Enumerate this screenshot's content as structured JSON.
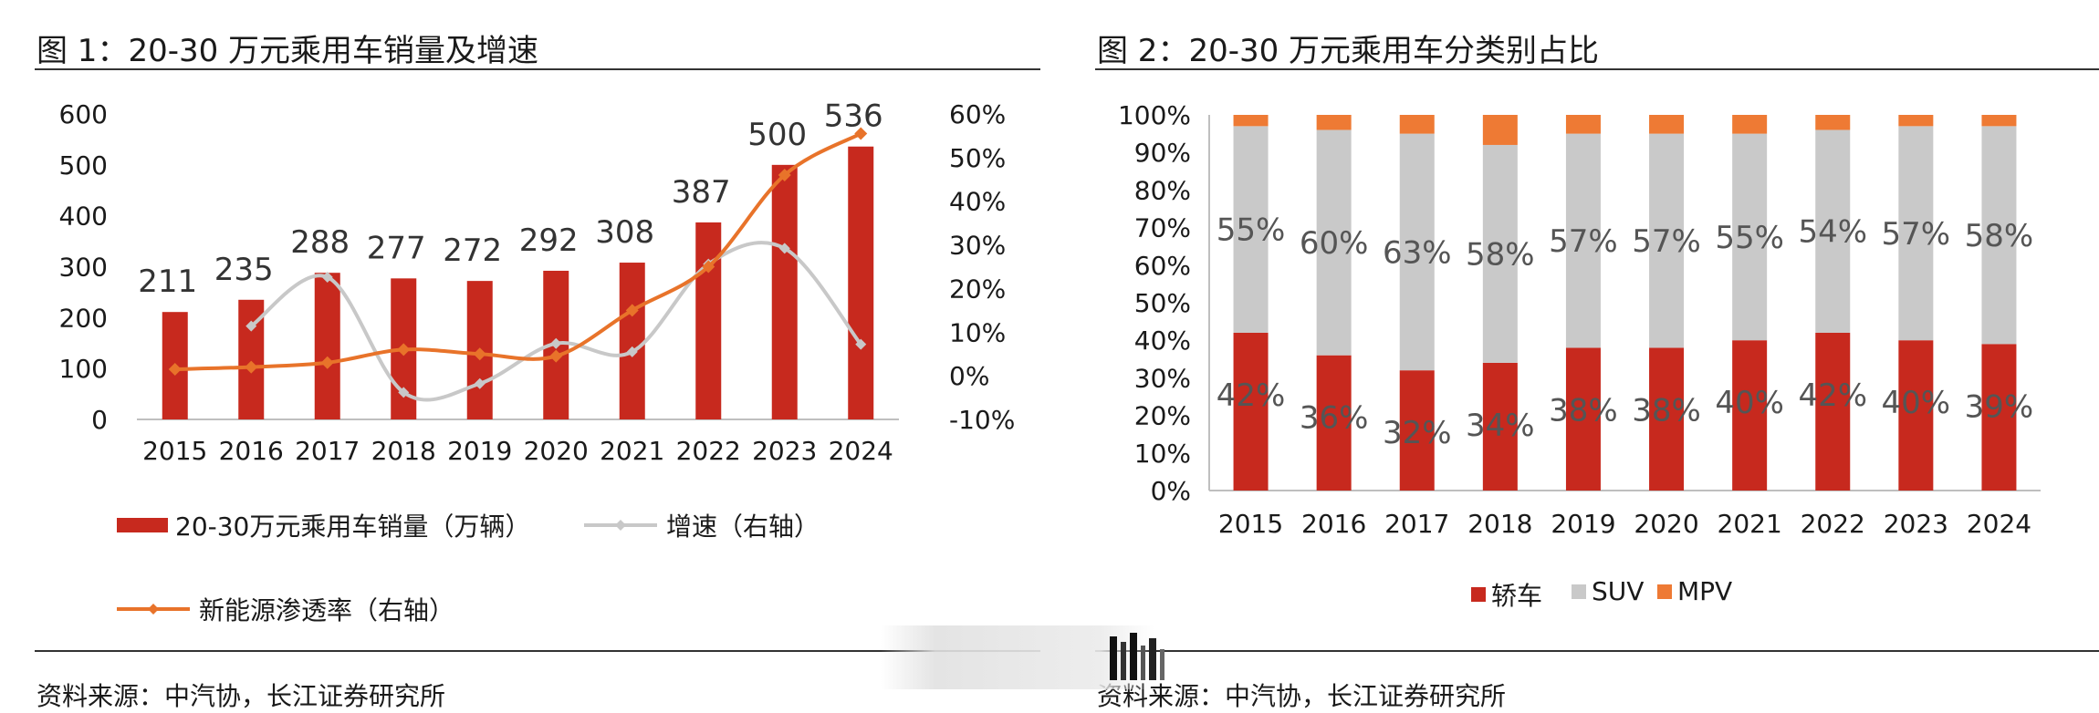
{
  "figure1": {
    "title": "图 1：20-30 万元乘用车销量及增速",
    "source": "资料来源：中汽协，长江证券研究所",
    "legend": {
      "sales": "20-30万元乘用车销量（万辆）",
      "growth": "增速（右轴）",
      "nev": "新能源渗透率（右轴）"
    }
  },
  "figure2": {
    "title": "图 2：20-30 万元乘用车分类别占比",
    "source": "资料来源：中汽协，长江证券研究所",
    "legend": {
      "sedan": "轿车",
      "suv": "SUV",
      "mpv": "MPV"
    }
  },
  "colors": {
    "bar_red": "#C7291E",
    "nev_orange": "#E8732A",
    "growth_gray": "#C8C8C8",
    "suv_gray": "#C9C9C9",
    "mpv_orange": "#EE7A34"
  },
  "chart_data": [
    {
      "type": "bar",
      "title": "20-30 万元乘用车销量及增速",
      "categories": [
        "2015",
        "2016",
        "2017",
        "2018",
        "2019",
        "2020",
        "2021",
        "2022",
        "2023",
        "2024"
      ],
      "series": [
        {
          "name": "20-30万元乘用车销量（万辆）",
          "type": "bar",
          "axis": "left",
          "values": [
            211,
            235,
            288,
            277,
            272,
            292,
            308,
            387,
            500,
            536
          ],
          "labels": [
            "211",
            "235",
            "288",
            "277",
            "272",
            "292",
            "308",
            "387",
            "500",
            "536"
          ]
        },
        {
          "name": "增速（右轴）",
          "type": "line",
          "axis": "right",
          "values": [
            null,
            11.4,
            22.6,
            -3.8,
            -1.8,
            7.4,
            5.5,
            25.6,
            29.2,
            7.2
          ]
        },
        {
          "name": "新能源渗透率（右轴）",
          "type": "line",
          "axis": "right",
          "values": [
            1.5,
            2.0,
            3.0,
            6.0,
            5.0,
            4.5,
            15.0,
            25.0,
            46.0,
            55.5
          ]
        }
      ],
      "y_left": {
        "min": 0,
        "max": 600,
        "ticks": [
          "0",
          "100",
          "200",
          "300",
          "400",
          "500",
          "600"
        ]
      },
      "y_right": {
        "min": -10,
        "max": 60,
        "ticks": [
          "-10%",
          "0%",
          "10%",
          "20%",
          "30%",
          "40%",
          "50%",
          "60%"
        ]
      },
      "grid": false,
      "legend_position": "bottom"
    },
    {
      "type": "bar",
      "stacked": true,
      "title": "20-30 万元乘用车分类别占比",
      "categories": [
        "2015",
        "2016",
        "2017",
        "2018",
        "2019",
        "2020",
        "2021",
        "2022",
        "2023",
        "2024"
      ],
      "series": [
        {
          "name": "轿车",
          "values": [
            42,
            36,
            32,
            34,
            38,
            38,
            40,
            42,
            40,
            39
          ],
          "labels": [
            "42%",
            "36%",
            "32%",
            "34%",
            "38%",
            "38%",
            "40%",
            "42%",
            "40%",
            "39%"
          ]
        },
        {
          "name": "SUV",
          "values": [
            55,
            60,
            63,
            58,
            57,
            57,
            55,
            54,
            57,
            58
          ],
          "labels": [
            "55%",
            "60%",
            "63%",
            "58%",
            "57%",
            "57%",
            "55%",
            "54%",
            "57%",
            "58%"
          ]
        },
        {
          "name": "MPV",
          "values": [
            3,
            4,
            5,
            8,
            5,
            5,
            5,
            4,
            3,
            3
          ]
        }
      ],
      "y": {
        "min": 0,
        "max": 100,
        "ticks": [
          "0%",
          "10%",
          "20%",
          "30%",
          "40%",
          "50%",
          "60%",
          "70%",
          "80%",
          "90%",
          "100%"
        ]
      },
      "grid": false,
      "legend_position": "bottom"
    }
  ]
}
